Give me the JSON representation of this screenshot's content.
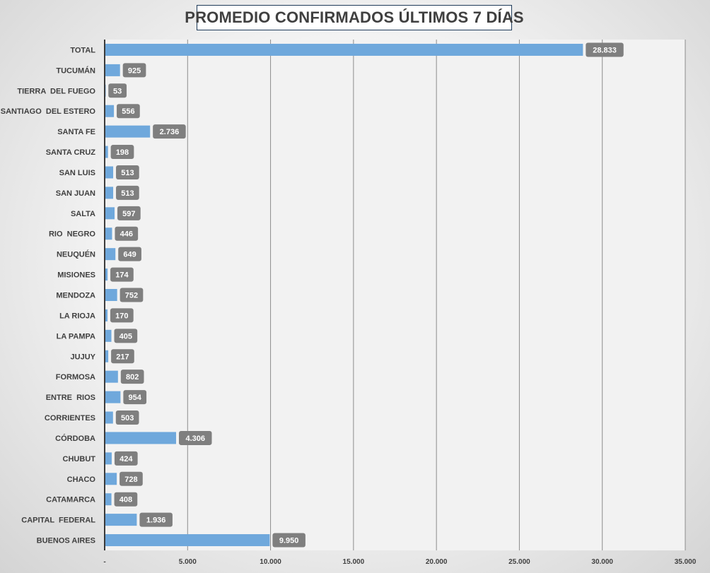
{
  "chart_data": {
    "type": "bar",
    "orientation": "horizontal",
    "title": "PROMEDIO CONFIRMADOS ÚLTIMOS 7 DÍAS",
    "categories": [
      "TOTAL",
      "TUCUMÁN",
      "TIERRA  DEL FUEGO",
      "SANTIAGO  DEL ESTERO",
      "SANTA FE",
      "SANTA CRUZ",
      "SAN LUIS",
      "SAN JUAN",
      "SALTA",
      "RIO  NEGRO",
      "NEUQUÉN",
      "MISIONES",
      "MENDOZA",
      "LA RIOJA",
      "LA PAMPA",
      "JUJUY",
      "FORMOSA",
      "ENTRE  RIOS",
      "CORRIENTES",
      "CÓRDOBA",
      "CHUBUT",
      "CHACO",
      "CATAMARCA",
      "CAPITAL  FEDERAL",
      "BUENOS AIRES"
    ],
    "values": [
      28833,
      925,
      53,
      556,
      2736,
      198,
      513,
      513,
      597,
      446,
      649,
      174,
      752,
      170,
      405,
      217,
      802,
      954,
      503,
      4306,
      424,
      728,
      408,
      1936,
      9950
    ],
    "value_labels": [
      "28.833",
      "925",
      "53",
      "556",
      "2.736",
      "198",
      "513",
      "513",
      "597",
      "446",
      "649",
      "174",
      "752",
      "170",
      "405",
      "217",
      "802",
      "954",
      "503",
      "4.306",
      "424",
      "728",
      "408",
      "1.936",
      "9.950"
    ],
    "xlim": [
      0,
      35000
    ],
    "x_ticks": [
      0,
      5000,
      10000,
      15000,
      20000,
      25000,
      30000,
      35000
    ],
    "x_tick_labels": [
      "-",
      "5.000",
      "10.000",
      "15.000",
      "20.000",
      "25.000",
      "30.000",
      "35.000"
    ],
    "xlabel": "",
    "ylabel": "",
    "grid": "vertical",
    "legend": "none",
    "colors": {
      "bar": "#6fa8dc",
      "label_bg": "#7f7f7f",
      "label_text": "#ffffff",
      "plot_bg": "#f2f2f2",
      "gridline": "#8c8c8c",
      "axis": "#000000"
    }
  }
}
